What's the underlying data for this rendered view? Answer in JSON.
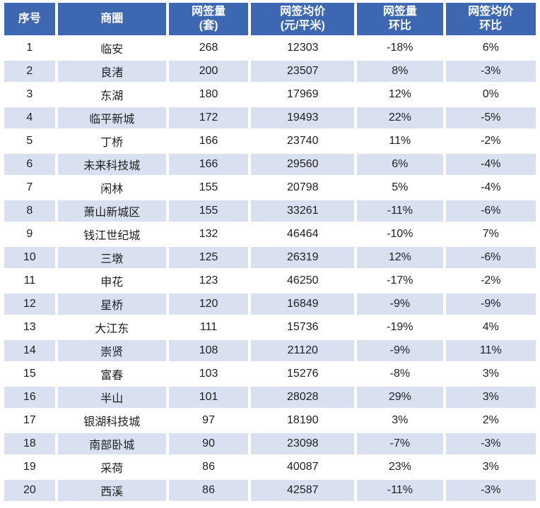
{
  "colors": {
    "header_bg": "#3d67b1",
    "alt_row_bg": "#d9e1f1",
    "text": "#1e1e1e",
    "header_text": "#ffffff",
    "page_bg": "#ffffff"
  },
  "chart_data": {
    "type": "table",
    "title": "",
    "columns": [
      {
        "line1": "序号",
        "line2": ""
      },
      {
        "line1": "商圈",
        "line2": ""
      },
      {
        "line1": "网签量",
        "line2": "(套)"
      },
      {
        "line1": "网签均价",
        "line2": "(元/平米)"
      },
      {
        "line1": "网签量",
        "line2": "环比"
      },
      {
        "line1": "网签均价",
        "line2": "环比"
      }
    ],
    "column_keys": [
      "index",
      "district",
      "volume",
      "avg_price",
      "volume_mom",
      "price_mom"
    ],
    "rows": [
      {
        "index": "1",
        "district": "临安",
        "volume": "268",
        "avg_price": "12303",
        "volume_mom": "-18%",
        "price_mom": "6%"
      },
      {
        "index": "2",
        "district": "良渚",
        "volume": "200",
        "avg_price": "23507",
        "volume_mom": "8%",
        "price_mom": "-3%"
      },
      {
        "index": "3",
        "district": "东湖",
        "volume": "180",
        "avg_price": "17969",
        "volume_mom": "12%",
        "price_mom": "0%"
      },
      {
        "index": "4",
        "district": "临平新城",
        "volume": "172",
        "avg_price": "19493",
        "volume_mom": "22%",
        "price_mom": "-5%"
      },
      {
        "index": "5",
        "district": "丁桥",
        "volume": "166",
        "avg_price": "23740",
        "volume_mom": "11%",
        "price_mom": "-2%"
      },
      {
        "index": "6",
        "district": "未来科技城",
        "volume": "166",
        "avg_price": "29560",
        "volume_mom": "6%",
        "price_mom": "-4%"
      },
      {
        "index": "7",
        "district": "闲林",
        "volume": "155",
        "avg_price": "20798",
        "volume_mom": "5%",
        "price_mom": "-4%"
      },
      {
        "index": "8",
        "district": "萧山新城区",
        "volume": "155",
        "avg_price": "33261",
        "volume_mom": "-11%",
        "price_mom": "-6%"
      },
      {
        "index": "9",
        "district": "钱江世纪城",
        "volume": "132",
        "avg_price": "46464",
        "volume_mom": "-10%",
        "price_mom": "7%"
      },
      {
        "index": "10",
        "district": "三墩",
        "volume": "125",
        "avg_price": "26319",
        "volume_mom": "12%",
        "price_mom": "-6%"
      },
      {
        "index": "11",
        "district": "申花",
        "volume": "123",
        "avg_price": "46250",
        "volume_mom": "-17%",
        "price_mom": "-2%"
      },
      {
        "index": "12",
        "district": "星桥",
        "volume": "120",
        "avg_price": "16849",
        "volume_mom": "-9%",
        "price_mom": "-9%"
      },
      {
        "index": "13",
        "district": "大江东",
        "volume": "111",
        "avg_price": "15736",
        "volume_mom": "-19%",
        "price_mom": "4%"
      },
      {
        "index": "14",
        "district": "崇贤",
        "volume": "108",
        "avg_price": "21120",
        "volume_mom": "-9%",
        "price_mom": "11%"
      },
      {
        "index": "15",
        "district": "富春",
        "volume": "103",
        "avg_price": "15276",
        "volume_mom": "-8%",
        "price_mom": "3%"
      },
      {
        "index": "16",
        "district": "半山",
        "volume": "101",
        "avg_price": "28028",
        "volume_mom": "29%",
        "price_mom": "3%"
      },
      {
        "index": "17",
        "district": "银湖科技城",
        "volume": "97",
        "avg_price": "18190",
        "volume_mom": "3%",
        "price_mom": "2%"
      },
      {
        "index": "18",
        "district": "南部卧城",
        "volume": "90",
        "avg_price": "23098",
        "volume_mom": "-7%",
        "price_mom": "-3%"
      },
      {
        "index": "19",
        "district": "采荷",
        "volume": "86",
        "avg_price": "40087",
        "volume_mom": "23%",
        "price_mom": "3%"
      },
      {
        "index": "20",
        "district": "西溪",
        "volume": "86",
        "avg_price": "42587",
        "volume_mom": "-11%",
        "price_mom": "-3%"
      }
    ]
  }
}
